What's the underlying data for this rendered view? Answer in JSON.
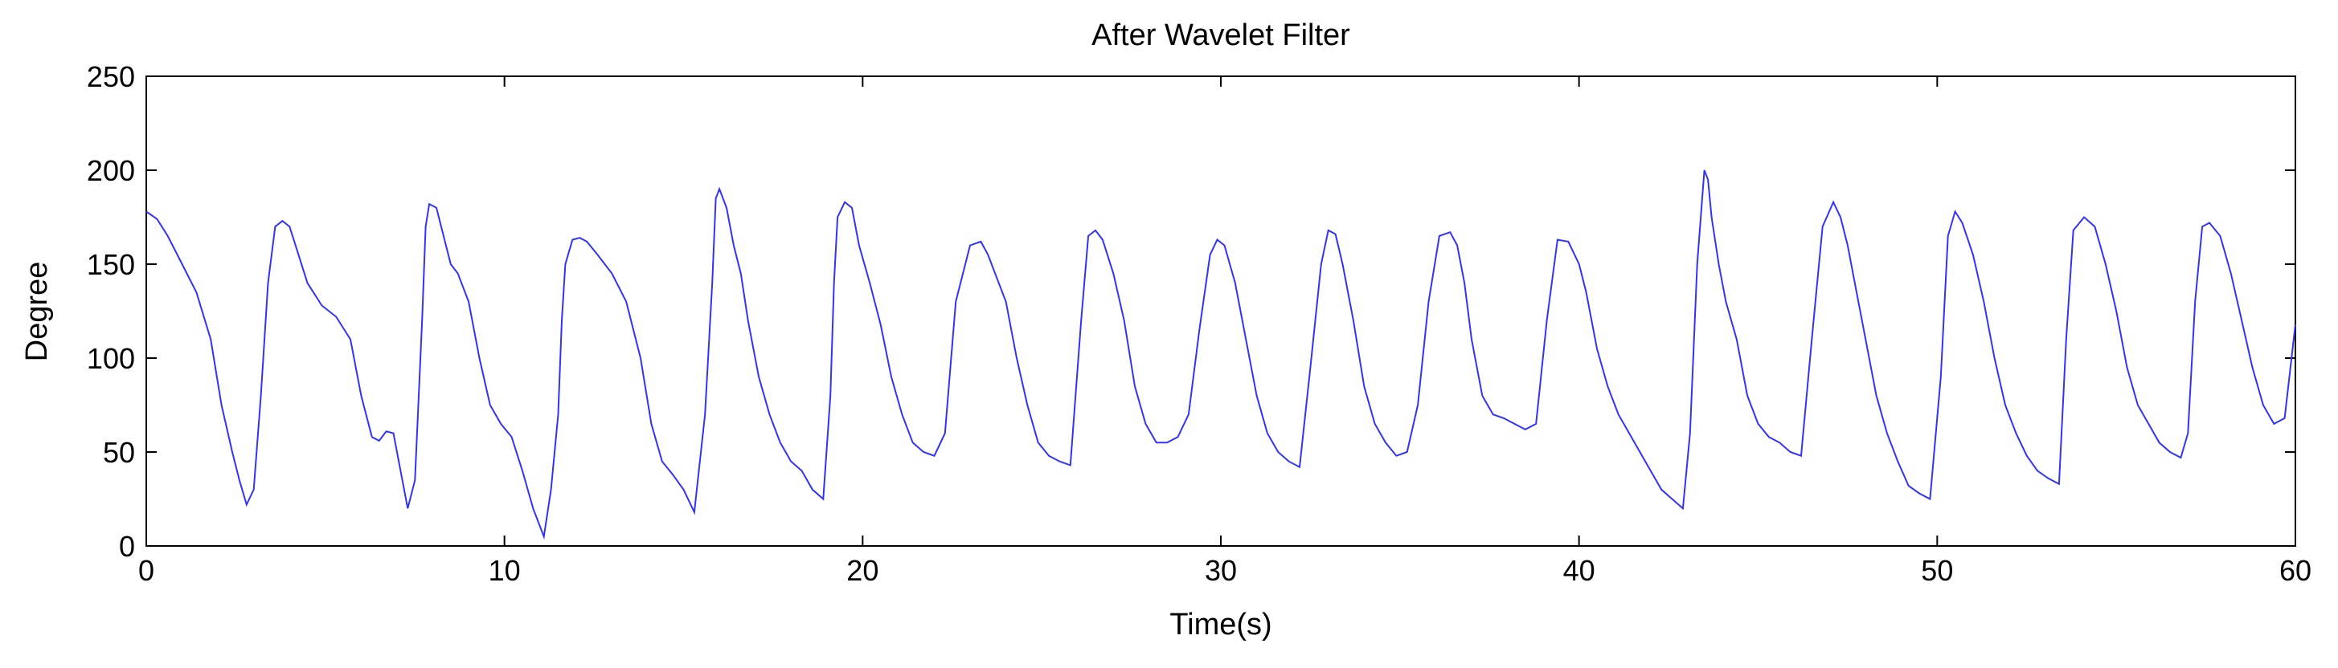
{
  "chart_data": {
    "type": "line",
    "title": "After Wavelet Filter",
    "xlabel": "Time(s)",
    "ylabel": "Degree",
    "xlim": [
      0,
      60
    ],
    "ylim": [
      0,
      250
    ],
    "xticks": [
      0,
      10,
      20,
      30,
      40,
      50,
      60
    ],
    "yticks": [
      0,
      50,
      100,
      150,
      200,
      250
    ],
    "grid": false,
    "legend": "none",
    "line_color": "#3232ff",
    "series": [
      {
        "x": [
          0,
          0.3,
          0.6,
          1.0,
          1.4,
          1.8,
          2.1,
          2.4,
          2.6,
          2.8,
          3.0,
          3.2,
          3.4,
          3.6,
          3.8,
          4.0,
          4.2,
          4.5,
          4.9,
          5.3,
          5.7,
          6.0,
          6.3,
          6.5,
          6.7,
          6.9,
          7.1,
          7.3,
          7.5,
          7.7,
          7.8,
          7.9,
          8.1,
          8.3,
          8.5,
          8.7,
          9.0,
          9.3,
          9.6,
          9.9,
          10.2,
          10.5,
          10.8,
          11.1,
          11.3,
          11.5,
          11.6,
          11.7,
          11.9,
          12.1,
          12.3,
          12.6,
          13.0,
          13.4,
          13.8,
          14.1,
          14.4,
          14.7,
          15.0,
          15.3,
          15.6,
          15.8,
          15.9,
          16.0,
          16.2,
          16.4,
          16.6,
          16.8,
          17.1,
          17.4,
          17.7,
          18.0,
          18.3,
          18.6,
          18.9,
          19.1,
          19.2,
          19.3,
          19.5,
          19.7,
          19.9,
          20.2,
          20.5,
          20.8,
          21.1,
          21.4,
          21.7,
          22.0,
          22.3,
          22.6,
          23.0,
          23.3,
          23.5,
          23.7,
          24.0,
          24.3,
          24.6,
          24.9,
          25.2,
          25.5,
          25.8,
          26.1,
          26.3,
          26.5,
          26.7,
          27.0,
          27.3,
          27.6,
          27.9,
          28.2,
          28.5,
          28.8,
          29.1,
          29.4,
          29.7,
          29.9,
          30.1,
          30.4,
          30.7,
          31.0,
          31.3,
          31.6,
          31.9,
          32.2,
          32.5,
          32.8,
          33.0,
          33.2,
          33.4,
          33.7,
          34.0,
          34.3,
          34.6,
          34.9,
          35.2,
          35.5,
          35.8,
          36.1,
          36.4,
          36.6,
          36.8,
          37.0,
          37.3,
          37.6,
          37.9,
          38.2,
          38.5,
          38.8,
          39.1,
          39.4,
          39.7,
          40.0,
          40.2,
          40.5,
          40.8,
          41.1,
          41.4,
          41.7,
          42.0,
          42.3,
          42.6,
          42.9,
          43.1,
          43.3,
          43.5,
          43.6,
          43.7,
          43.9,
          44.1,
          44.4,
          44.7,
          45.0,
          45.3,
          45.6,
          45.9,
          46.2,
          46.5,
          46.8,
          47.1,
          47.3,
          47.5,
          47.7,
          48.0,
          48.3,
          48.6,
          48.9,
          49.2,
          49.5,
          49.8,
          50.1,
          50.3,
          50.5,
          50.7,
          51.0,
          51.3,
          51.6,
          51.9,
          52.2,
          52.5,
          52.8,
          53.1,
          53.4,
          53.6,
          53.8,
          54.1,
          54.4,
          54.7,
          55.0,
          55.3,
          55.6,
          55.9,
          56.2,
          56.5,
          56.8,
          57.0,
          57.2,
          57.4,
          57.6,
          57.9,
          58.2,
          58.5,
          58.8,
          59.1,
          59.4,
          59.7,
          60.0
        ],
        "y": [
          178,
          174,
          165,
          150,
          135,
          110,
          75,
          50,
          35,
          22,
          30,
          80,
          140,
          170,
          173,
          170,
          158,
          140,
          128,
          122,
          110,
          80,
          58,
          56,
          61,
          60,
          40,
          20,
          35,
          120,
          170,
          182,
          180,
          165,
          150,
          145,
          130,
          100,
          75,
          65,
          58,
          40,
          20,
          5,
          30,
          70,
          120,
          150,
          163,
          164,
          162,
          155,
          145,
          130,
          100,
          65,
          45,
          38,
          30,
          18,
          70,
          140,
          185,
          190,
          180,
          160,
          145,
          120,
          90,
          70,
          55,
          45,
          40,
          30,
          25,
          80,
          140,
          175,
          183,
          180,
          160,
          140,
          118,
          90,
          70,
          55,
          50,
          48,
          60,
          130,
          160,
          162,
          155,
          145,
          130,
          100,
          75,
          55,
          48,
          45,
          43,
          120,
          165,
          168,
          163,
          145,
          120,
          85,
          65,
          55,
          55,
          58,
          70,
          115,
          155,
          163,
          160,
          140,
          110,
          80,
          60,
          50,
          45,
          42,
          95,
          150,
          168,
          166,
          150,
          120,
          85,
          65,
          55,
          48,
          50,
          75,
          130,
          165,
          167,
          160,
          140,
          110,
          80,
          70,
          68,
          65,
          62,
          65,
          120,
          163,
          162,
          150,
          135,
          105,
          85,
          70,
          60,
          50,
          40,
          30,
          25,
          20,
          60,
          150,
          200,
          195,
          175,
          150,
          130,
          110,
          80,
          65,
          58,
          55,
          50,
          48,
          110,
          170,
          183,
          175,
          160,
          140,
          110,
          80,
          60,
          45,
          32,
          28,
          25,
          90,
          165,
          178,
          172,
          155,
          130,
          100,
          75,
          60,
          48,
          40,
          36,
          33,
          110,
          168,
          175,
          170,
          150,
          125,
          95,
          75,
          65,
          55,
          50,
          47,
          60,
          130,
          170,
          172,
          165,
          145,
          120,
          95,
          75,
          65,
          68,
          118
        ]
      }
    ]
  }
}
